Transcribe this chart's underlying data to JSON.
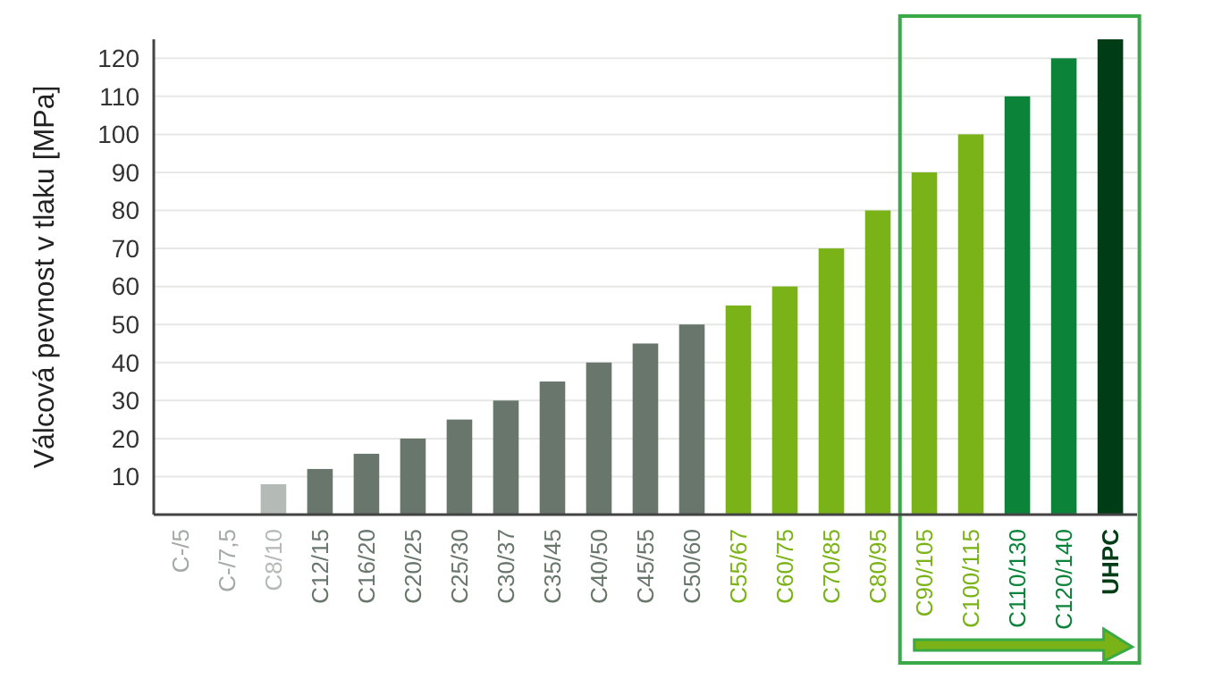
{
  "chart_data": {
    "type": "bar",
    "ylabel": "Válcová pevnost v tlaku [MPa]",
    "categories": [
      "C-/5",
      "C-/7,5",
      "C8/10",
      "C12/15",
      "C16/20",
      "C20/25",
      "C25/30",
      "C30/37",
      "C35/45",
      "C40/50",
      "C45/55",
      "C50/60",
      "C55/67",
      "C60/75",
      "C70/85",
      "C80/95",
      "C90/105",
      "C100/115",
      "C110/130",
      "C120/140",
      "UHPC"
    ],
    "values": [
      null,
      null,
      8,
      12,
      16,
      20,
      25,
      30,
      35,
      40,
      45,
      50,
      55,
      60,
      70,
      80,
      90,
      100,
      110,
      120,
      125
    ],
    "colors": [
      "#a3aaa5",
      "#a3aaa5",
      "#b4bab6",
      "#68766c",
      "#68766c",
      "#68766c",
      "#68766c",
      "#68766c",
      "#68766c",
      "#68766c",
      "#68766c",
      "#68766c",
      "#7ab317",
      "#7ab317",
      "#7ab317",
      "#7ab317",
      "#7ab317",
      "#7ab317",
      "#0b843a",
      "#0b843a",
      "#003d17"
    ],
    "ylim": [
      0,
      125
    ],
    "yticks": [
      10,
      20,
      30,
      40,
      50,
      60,
      70,
      80,
      90,
      100,
      110,
      120
    ],
    "grid": "y"
  }
}
